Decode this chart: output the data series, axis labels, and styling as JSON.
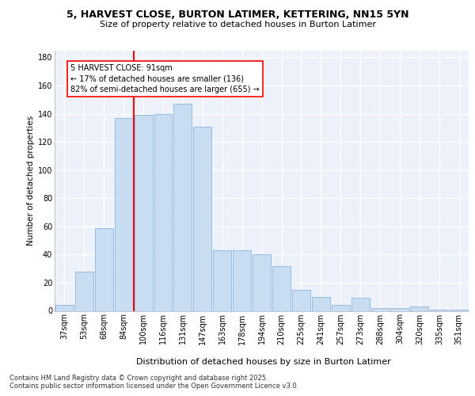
{
  "title_line1": "5, HARVEST CLOSE, BURTON LATIMER, KETTERING, NN15 5YN",
  "title_line2": "Size of property relative to detached houses in Burton Latimer",
  "xlabel": "Distribution of detached houses by size in Burton Latimer",
  "ylabel": "Number of detached properties",
  "categories": [
    "37sqm",
    "53sqm",
    "68sqm",
    "84sqm",
    "100sqm",
    "116sqm",
    "131sqm",
    "147sqm",
    "163sqm",
    "178sqm",
    "194sqm",
    "210sqm",
    "225sqm",
    "241sqm",
    "257sqm",
    "273sqm",
    "288sqm",
    "304sqm",
    "320sqm",
    "335sqm",
    "351sqm"
  ],
  "bar_heights": [
    4,
    28,
    59,
    137,
    139,
    140,
    147,
    131,
    43,
    43,
    40,
    32,
    15,
    10,
    4,
    9,
    2,
    2,
    3,
    1,
    1
  ],
  "bar_color": "#c9ddf2",
  "bar_edge_color": "#8ab4db",
  "vline_color": "red",
  "vline_x": 3.5,
  "annotation_text": "5 HARVEST CLOSE: 91sqm\n← 17% of detached houses are smaller (136)\n82% of semi-detached houses are larger (655) →",
  "footer_text": "Contains HM Land Registry data © Crown copyright and database right 2025.\nContains public sector information licensed under the Open Government Licence v3.0.",
  "bg_color": "#edf2fa",
  "ylim": [
    0,
    185
  ],
  "yticks": [
    0,
    20,
    40,
    60,
    80,
    100,
    120,
    140,
    160,
    180
  ],
  "title1_fontsize": 9.0,
  "title2_fontsize": 8.0,
  "ylabel_fontsize": 7.5,
  "xlabel_fontsize": 8.0,
  "tick_fontsize": 7.0,
  "ann_fontsize": 7.0,
  "footer_fontsize": 6.0
}
